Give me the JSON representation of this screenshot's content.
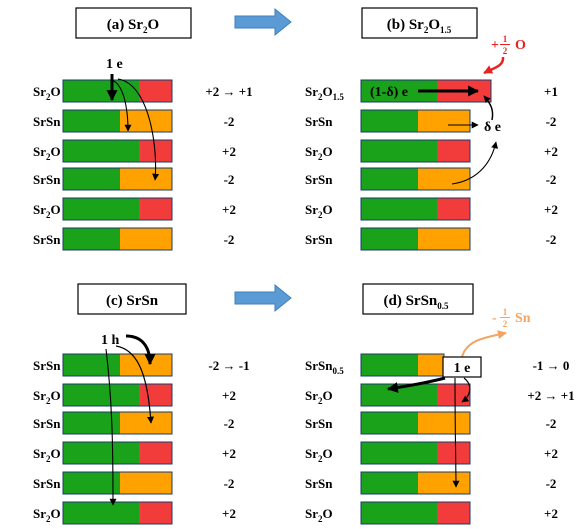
{
  "colors": {
    "green": "#1aa31a",
    "red": "#f23b3b",
    "orange": "#ffa200",
    "arrow_blue": "#5b9bd5",
    "annotation_red": "#e8231f",
    "annotation_orange": "#f4a460",
    "bar_border": "#1a3b6b"
  },
  "panels": {
    "a": {
      "title_prefix": "(a) Sr",
      "title_sub1": "2",
      "title_suffix": "O",
      "title_sub2": "",
      "annotation": "1 e",
      "labels": [
        {
          "base": "Sr",
          "sub": "2",
          "tail": "O",
          "sub2": ""
        },
        {
          "base": "SrSn",
          "sub": "",
          "tail": "",
          "sub2": ""
        },
        {
          "base": "Sr",
          "sub": "2",
          "tail": "O",
          "sub2": ""
        },
        {
          "base": "SrSn",
          "sub": "",
          "tail": "",
          "sub2": ""
        },
        {
          "base": "Sr",
          "sub": "2",
          "tail": "O",
          "sub2": ""
        },
        {
          "base": "SrSn",
          "sub": "",
          "tail": "",
          "sub2": ""
        }
      ],
      "charges": [
        "+2 → +1",
        "-2",
        "+2",
        "-2",
        "+2",
        "-2"
      ]
    },
    "b": {
      "title_prefix": "(b) Sr",
      "title_sub1": "2",
      "title_suffix": "O",
      "title_sub2": "1.5",
      "annotation_inbar": "(1-δ) e",
      "annotation_delta": "δ e",
      "added_sign": "+",
      "added_num": "1",
      "added_den": "2",
      "added_species": "O",
      "labels": [
        {
          "base": "Sr",
          "sub": "2",
          "tail": "O",
          "sub2": "1.5"
        },
        {
          "base": "SrSn",
          "sub": "",
          "tail": "",
          "sub2": ""
        },
        {
          "base": "Sr",
          "sub": "2",
          "tail": "O",
          "sub2": ""
        },
        {
          "base": "SrSn",
          "sub": "",
          "tail": "",
          "sub2": ""
        },
        {
          "base": "Sr",
          "sub": "2",
          "tail": "O",
          "sub2": ""
        },
        {
          "base": "SrSn",
          "sub": "",
          "tail": "",
          "sub2": ""
        }
      ],
      "charges": [
        "+1",
        "-2",
        "+2",
        "-2",
        "+2",
        "-2"
      ]
    },
    "c": {
      "title_prefix": "(c) SrSn",
      "title_sub1": "",
      "title_suffix": "",
      "title_sub2": "",
      "annotation": "1 h",
      "labels": [
        {
          "base": "SrSn",
          "sub": "",
          "tail": "",
          "sub2": ""
        },
        {
          "base": "Sr",
          "sub": "2",
          "tail": "O",
          "sub2": ""
        },
        {
          "base": "SrSn",
          "sub": "",
          "tail": "",
          "sub2": ""
        },
        {
          "base": "Sr",
          "sub": "2",
          "tail": "O",
          "sub2": ""
        },
        {
          "base": "SrSn",
          "sub": "",
          "tail": "",
          "sub2": ""
        },
        {
          "base": "Sr",
          "sub": "2",
          "tail": "O",
          "sub2": ""
        }
      ],
      "charges": [
        "-2 → -1",
        "+2",
        "-2",
        "+2",
        "-2",
        "+2"
      ]
    },
    "d": {
      "title_prefix": "(d) SrSn",
      "title_sub1": "0.5",
      "title_suffix": "",
      "title_sub2": "",
      "annotation": "1 e",
      "removed_sign": "-",
      "removed_num": "1",
      "removed_den": "2",
      "removed_species": "Sn",
      "labels": [
        {
          "base": "SrSn",
          "sub": "0.5",
          "tail": "",
          "sub2": ""
        },
        {
          "base": "Sr",
          "sub": "2",
          "tail": "O",
          "sub2": ""
        },
        {
          "base": "SrSn",
          "sub": "",
          "tail": "",
          "sub2": ""
        },
        {
          "base": "Sr",
          "sub": "2",
          "tail": "O",
          "sub2": ""
        },
        {
          "base": "SrSn",
          "sub": "",
          "tail": "",
          "sub2": ""
        },
        {
          "base": "Sr",
          "sub": "2",
          "tail": "O",
          "sub2": ""
        }
      ],
      "charges": [
        "-1 → 0",
        "+2 → +1",
        "-2",
        "+2",
        "-2",
        "+2"
      ]
    }
  }
}
